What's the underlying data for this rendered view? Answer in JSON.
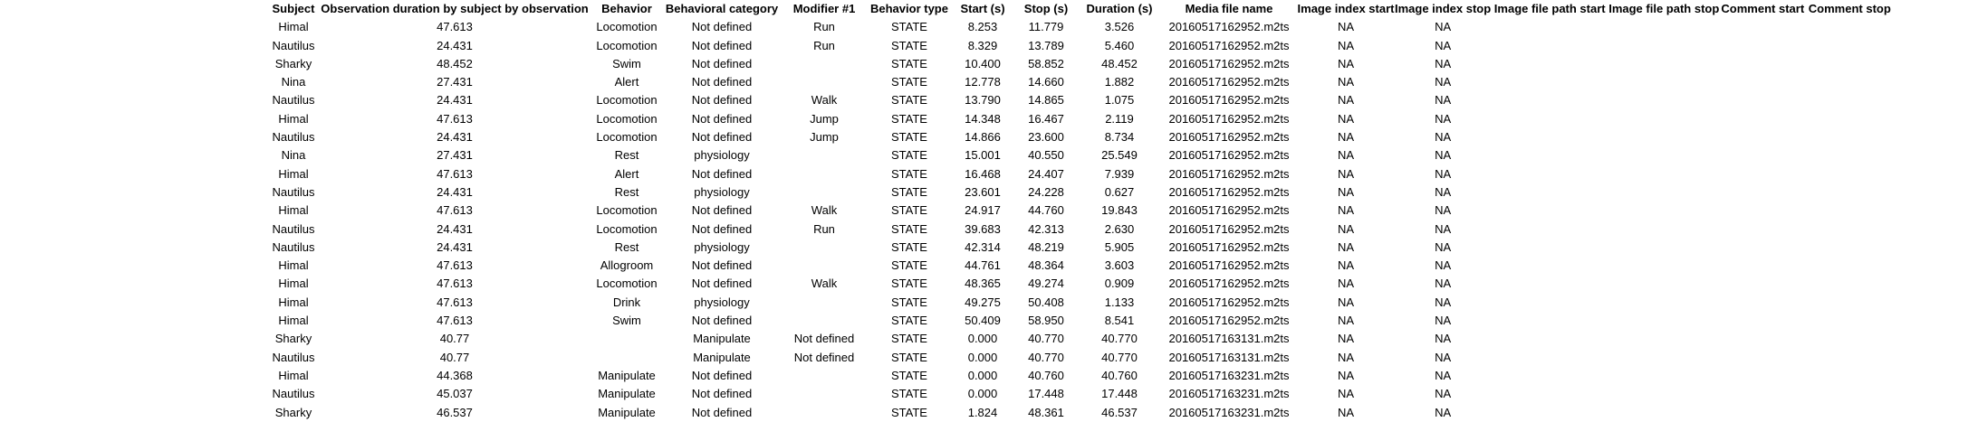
{
  "columns": [
    "Subject",
    "Observation duration by subject by observation",
    "Behavior",
    "Behavioral category",
    "Modifier #1",
    "Behavior type",
    "Start (s)",
    "Stop (s)",
    "Duration (s)",
    "Media file name",
    "Image index start",
    "Image index stop",
    "Image file path start",
    "Image file path stop",
    "Comment start",
    "Comment stop"
  ],
  "rows": [
    [
      "Himal",
      "47.613",
      "Locomotion",
      "Not defined",
      "Run",
      "STATE",
      "8.253",
      "11.779",
      "3.526",
      "20160517162952.m2ts",
      "NA",
      "NA",
      "",
      "",
      "",
      ""
    ],
    [
      "Nautilus",
      "24.431",
      "Locomotion",
      "Not defined",
      "Run",
      "STATE",
      "8.329",
      "13.789",
      "5.460",
      "20160517162952.m2ts",
      "NA",
      "NA",
      "",
      "",
      "",
      ""
    ],
    [
      "Sharky",
      "48.452",
      "Swim",
      "Not defined",
      "",
      "STATE",
      "10.400",
      "58.852",
      "48.452",
      "20160517162952.m2ts",
      "NA",
      "NA",
      "",
      "",
      "",
      ""
    ],
    [
      "Nina",
      "27.431",
      "Alert",
      "Not defined",
      "",
      "STATE",
      "12.778",
      "14.660",
      "1.882",
      "20160517162952.m2ts",
      "NA",
      "NA",
      "",
      "",
      "",
      ""
    ],
    [
      "Nautilus",
      "24.431",
      "Locomotion",
      "Not defined",
      "Walk",
      "STATE",
      "13.790",
      "14.865",
      "1.075",
      "20160517162952.m2ts",
      "NA",
      "NA",
      "",
      "",
      "",
      ""
    ],
    [
      "Himal",
      "47.613",
      "Locomotion",
      "Not defined",
      "Jump",
      "STATE",
      "14.348",
      "16.467",
      "2.119",
      "20160517162952.m2ts",
      "NA",
      "NA",
      "",
      "",
      "",
      ""
    ],
    [
      "Nautilus",
      "24.431",
      "Locomotion",
      "Not defined",
      "Jump",
      "STATE",
      "14.866",
      "23.600",
      "8.734",
      "20160517162952.m2ts",
      "NA",
      "NA",
      "",
      "",
      "",
      ""
    ],
    [
      "Nina",
      "27.431",
      "Rest",
      "physiology",
      "",
      "STATE",
      "15.001",
      "40.550",
      "25.549",
      "20160517162952.m2ts",
      "NA",
      "NA",
      "",
      "",
      "",
      ""
    ],
    [
      "Himal",
      "47.613",
      "Alert",
      "Not defined",
      "",
      "STATE",
      "16.468",
      "24.407",
      "7.939",
      "20160517162952.m2ts",
      "NA",
      "NA",
      "",
      "",
      "",
      ""
    ],
    [
      "Nautilus",
      "24.431",
      "Rest",
      "physiology",
      "",
      "STATE",
      "23.601",
      "24.228",
      "0.627",
      "20160517162952.m2ts",
      "NA",
      "NA",
      "",
      "",
      "",
      ""
    ],
    [
      "Himal",
      "47.613",
      "Locomotion",
      "Not defined",
      "Walk",
      "STATE",
      "24.917",
      "44.760",
      "19.843",
      "20160517162952.m2ts",
      "NA",
      "NA",
      "",
      "",
      "",
      ""
    ],
    [
      "Nautilus",
      "24.431",
      "Locomotion",
      "Not defined",
      "Run",
      "STATE",
      "39.683",
      "42.313",
      "2.630",
      "20160517162952.m2ts",
      "NA",
      "NA",
      "",
      "",
      "",
      ""
    ],
    [
      "Nautilus",
      "24.431",
      "Rest",
      "physiology",
      "",
      "STATE",
      "42.314",
      "48.219",
      "5.905",
      "20160517162952.m2ts",
      "NA",
      "NA",
      "",
      "",
      "",
      ""
    ],
    [
      "Himal",
      "47.613",
      "Allogroom",
      "Not defined",
      "",
      "STATE",
      "44.761",
      "48.364",
      "3.603",
      "20160517162952.m2ts",
      "NA",
      "NA",
      "",
      "",
      "",
      ""
    ],
    [
      "Himal",
      "47.613",
      "Locomotion",
      "Not defined",
      "Walk",
      "STATE",
      "48.365",
      "49.274",
      "0.909",
      "20160517162952.m2ts",
      "NA",
      "NA",
      "",
      "",
      "",
      ""
    ],
    [
      "Himal",
      "47.613",
      "Drink",
      "physiology",
      "",
      "STATE",
      "49.275",
      "50.408",
      "1.133",
      "20160517162952.m2ts",
      "NA",
      "NA",
      "",
      "",
      "",
      ""
    ],
    [
      "Himal",
      "47.613",
      "Swim",
      "Not defined",
      "",
      "STATE",
      "50.409",
      "58.950",
      "8.541",
      "20160517162952.m2ts",
      "NA",
      "NA",
      "",
      "",
      "",
      ""
    ],
    [
      "Sharky",
      "40.77",
      "",
      "Manipulate",
      "Not defined",
      "STATE",
      "0.000",
      "40.770",
      "40.770",
      "20160517163131.m2ts",
      "NA",
      "NA",
      "",
      "",
      "",
      ""
    ],
    [
      "Nautilus",
      "40.77",
      "",
      "Manipulate",
      "Not defined",
      "STATE",
      "0.000",
      "40.770",
      "40.770",
      "20160517163131.m2ts",
      "NA",
      "NA",
      "",
      "",
      "",
      ""
    ],
    [
      "Himal",
      "44.368",
      "Manipulate",
      "Not defined",
      "",
      "STATE",
      "0.000",
      "40.760",
      "40.760",
      "20160517163231.m2ts",
      "NA",
      "NA",
      "",
      "",
      "",
      ""
    ],
    [
      "Nautilus",
      "45.037",
      "Manipulate",
      "Not defined",
      "",
      "STATE",
      "0.000",
      "17.448",
      "17.448",
      "20160517163231.m2ts",
      "NA",
      "NA",
      "",
      "",
      "",
      ""
    ],
    [
      "Sharky",
      "46.537",
      "Manipulate",
      "Not defined",
      "",
      "STATE",
      "1.824",
      "48.361",
      "46.537",
      "20160517163231.m2ts",
      "NA",
      "NA",
      "",
      "",
      "",
      ""
    ]
  ]
}
